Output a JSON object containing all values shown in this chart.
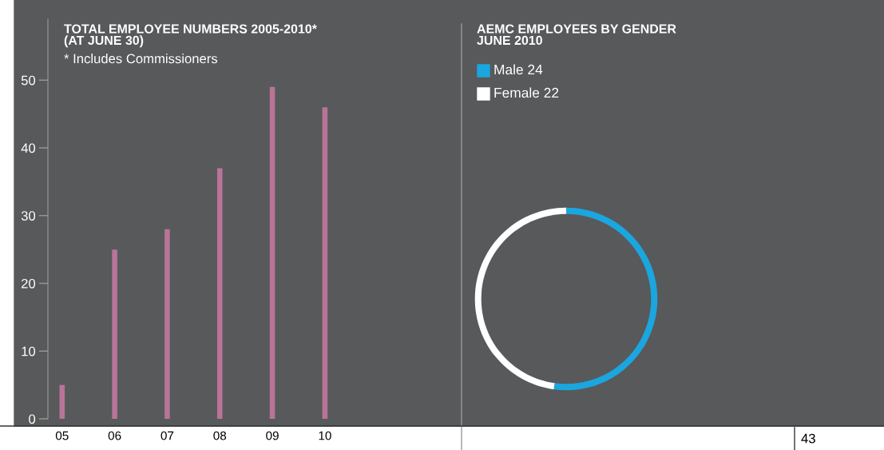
{
  "chart_data": [
    {
      "type": "bar",
      "title": "TOTAL EMPLOYEE NUMBERS 2005-2010*\n(AT JUNE 30)",
      "subtitle": "* Includes Commissioners",
      "categories": [
        "05",
        "06",
        "07",
        "08",
        "09",
        "10"
      ],
      "values": [
        5,
        25,
        28,
        37,
        49,
        46
      ],
      "color": "#b87598",
      "ylim": [
        0,
        59
      ],
      "yticks": [
        0,
        10,
        20,
        30,
        40,
        50
      ],
      "grid": false,
      "legend": false
    },
    {
      "type": "donut",
      "title": "AEMC EMPLOYEES BY GENDER\nJUNE 2010",
      "categories": [
        "Male 24",
        "Female 22"
      ],
      "values": [
        24,
        22
      ],
      "colors": [
        "#1ba6df",
        "#ffffff"
      ],
      "legend": "top left",
      "annotations": [
        "43"
      ]
    }
  ]
}
